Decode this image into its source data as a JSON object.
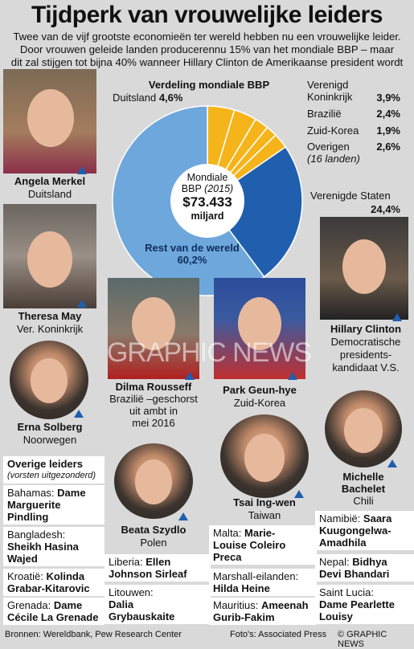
{
  "title": "Tijdperk van vrouwelijke leiders",
  "subtitle": [
    "Twee van de vijf grootste economieën ter wereld hebben nu een vrouwelijke leider.",
    "Door vrouwen geleide landen producerennu 15% van het mondiale BBP – maar",
    "dit zal stijgen tot bijna 40% wanneer Hillary Clinton de Amerikaanse president wordt"
  ],
  "chart": {
    "title": "Verdeling mondiale BBP",
    "center_l1": "Mondiale",
    "center_l2": "BBP",
    "center_year": "(2015)",
    "center_value": "$73.433",
    "center_unit": "miljard",
    "labels": {
      "germany": "Duitsland",
      "germany_pct": "4,6%",
      "uk": "Verenigd Koninkrijk",
      "uk_pct": "3,9%",
      "brazil": "Brazilië",
      "brazil_pct": "2,4%",
      "korea": "Zuid-Korea",
      "korea_pct": "1,9%",
      "others": "Overigen",
      "others_note": "(16 landen)",
      "others_pct": "2,6%",
      "usa": "Verenigde Staten",
      "usa_pct": "24,4%",
      "rest": "Rest van de wereld",
      "rest_pct": "60,2%"
    },
    "colors": {
      "female": "#f5b41a",
      "usa": "#1f5fae",
      "rest": "#6ea7dc"
    }
  },
  "chart_data": {
    "type": "pie",
    "title": "Verdeling mondiale BBP",
    "labels": [
      "Duitsland",
      "Verenigd Koninkrijk",
      "Brazilië",
      "Zuid-Korea",
      "Overigen",
      "Verenigde Staten",
      "Rest van de wereld"
    ],
    "values": [
      4.6,
      3.9,
      2.4,
      1.9,
      2.6,
      24.4,
      60.2
    ]
  },
  "leaders": {
    "merkel": {
      "name": "Angela Merkel",
      "country": "Duitsland"
    },
    "may": {
      "name": "Theresa May",
      "country": "Ver. Koninkrijk"
    },
    "solberg": {
      "name": "Erna Solberg",
      "country": "Noorwegen"
    },
    "clinton": {
      "name": "Hillary Clinton",
      "line2": "Democratische",
      "line3": "presidents-",
      "line4": "kandidaat V.S."
    },
    "rousseff": {
      "name": "Dilma Rousseff",
      "line2": "Brazilië –geschorst",
      "line3": "uit ambt in",
      "line4": "mei 2016"
    },
    "park": {
      "name": "Park Geun-hye",
      "country": "Zuid-Korea"
    },
    "szydlo": {
      "name": "Beata Szydlo",
      "country": "Polen"
    },
    "tsai": {
      "name": "Tsai Ing-wen",
      "country": "Taiwan"
    },
    "bachelet": {
      "name1": "Michelle",
      "name2": "Bachelet",
      "country": "Chili"
    }
  },
  "others": {
    "title": "Overige leiders",
    "note": "(vorsten uitgezonderd)",
    "bahamas_c": "Bahamas:",
    "bahamas_n1": "Dame",
    "bahamas_n2": "Marguerite",
    "bahamas_n3": "Pindling",
    "bangladesh_c": "Bangladesh:",
    "bangladesh_n1": "Sheikh Hasina",
    "bangladesh_n2": "Wajed",
    "kroatie_c": "Kroatië:",
    "kroatie_n1": "Kolinda",
    "kroatie_n2": "Grabar-Kitarovic",
    "grenada_c": "Grenada:",
    "grenada_n1": "Dame",
    "grenada_n2": "Cécile La Grenade",
    "liberia_c": "Liberia:",
    "liberia_n1": "Ellen",
    "liberia_n2": "Johnson Sirleaf",
    "litouwen_c": "Litouwen:",
    "litouwen_n1": "Dalia",
    "litouwen_n2": "Grybauskaite",
    "malta_c": "Malta:",
    "malta_n1": "Marie-",
    "malta_n2": "Louise Coleiro",
    "malta_n3": "Preca",
    "marshall_c": "Marshall-eilanden:",
    "marshall_n1": "Hilda Heine",
    "mauritius_c": "Mauritius:",
    "mauritius_n1": "Ameenah",
    "mauritius_n2": "Gurib-Fakim",
    "namibie_c": "Namibië:",
    "namibie_n1": "Saara",
    "namibie_n2": "Kuugongelwa-",
    "namibie_n3": "Amadhila",
    "nepal_c": "Nepal:",
    "nepal_n1": "Bidhya",
    "nepal_n2": "Devi Bhandari",
    "lucia_c": "Saint Lucia:",
    "lucia_n1": "Dame Pearlette",
    "lucia_n2": "Louisy"
  },
  "footer": {
    "sources": "Bronnen: Wereldbank, Pew Research Center",
    "photos": "Foto's: Associated Press",
    "credit": "© GRAPHIC NEWS"
  },
  "watermark": "GRAPHIC NEWS"
}
